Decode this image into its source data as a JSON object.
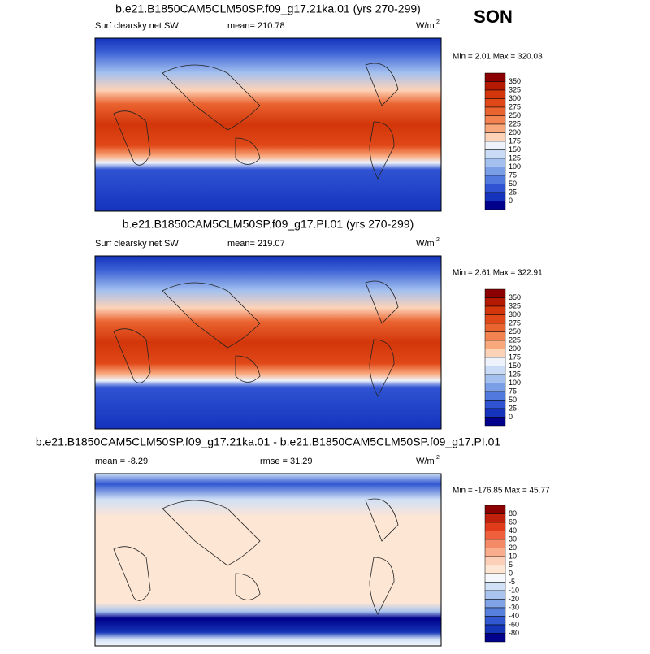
{
  "season": "SON",
  "panels": [
    {
      "title": "b.e21.B1850CAM5CLM50SP.f09_g17.21ka.01 (yrs 270-299)",
      "variable": "Surf clearsky net SW",
      "stat": "mean= 210.78",
      "units": "W/m",
      "units_sup": "2",
      "minmax": "Min =  2.01 Max = 320.03",
      "colorbar": {
        "levels": [
          350,
          325,
          300,
          275,
          250,
          225,
          200,
          175,
          150,
          125,
          100,
          75,
          50,
          25,
          0
        ],
        "colors": [
          "#8b0000",
          "#b51a00",
          "#d2360a",
          "#e04818",
          "#ea6430",
          "#f38452",
          "#f9a87c",
          "#fdd3b8",
          "#eef3fb",
          "#c9dbf5",
          "#a3c0ef",
          "#7b9fe7",
          "#5279dd",
          "#2f53d2",
          "#1533bd",
          "#00008a"
        ]
      }
    },
    {
      "title": "b.e21.B1850CAM5CLM50SP.f09_g17.PI.01 (yrs 270-299)",
      "variable": "Surf clearsky net SW",
      "stat": "mean= 219.07",
      "units": "W/m",
      "units_sup": "2",
      "minmax": "Min =  2.61 Max = 322.91",
      "colorbar": {
        "levels": [
          350,
          325,
          300,
          275,
          250,
          225,
          200,
          175,
          150,
          125,
          100,
          75,
          50,
          25,
          0
        ],
        "colors": [
          "#8b0000",
          "#b51a00",
          "#d2360a",
          "#e04818",
          "#ea6430",
          "#f38452",
          "#f9a87c",
          "#fdd3b8",
          "#eef3fb",
          "#c9dbf5",
          "#a3c0ef",
          "#7b9fe7",
          "#5279dd",
          "#2f53d2",
          "#1533bd",
          "#00008a"
        ]
      }
    },
    {
      "title": "b.e21.B1850CAM5CLM50SP.f09_g17.21ka.01 - b.e21.B1850CAM5CLM50SP.f09_g17.PI.01",
      "variable": "mean =  -8.29",
      "stat": "rmse = 31.29",
      "units": "W/m",
      "units_sup": "2",
      "minmax": "Min = -176.85 Max =  45.77",
      "colorbar": {
        "levels": [
          80,
          60,
          40,
          30,
          20,
          10,
          5,
          0,
          -5,
          -10,
          -20,
          -30,
          -40,
          -60,
          -80
        ],
        "colors": [
          "#8b0000",
          "#c0200c",
          "#e03c1c",
          "#f0603c",
          "#f58a66",
          "#f9ad8c",
          "#fcd0b8",
          "#fde6d4",
          "#f4f7fc",
          "#d0e0f6",
          "#a9c4ef",
          "#80a3e6",
          "#5780dc",
          "#3158d0",
          "#1535b8",
          "#00008a"
        ]
      }
    }
  ]
}
